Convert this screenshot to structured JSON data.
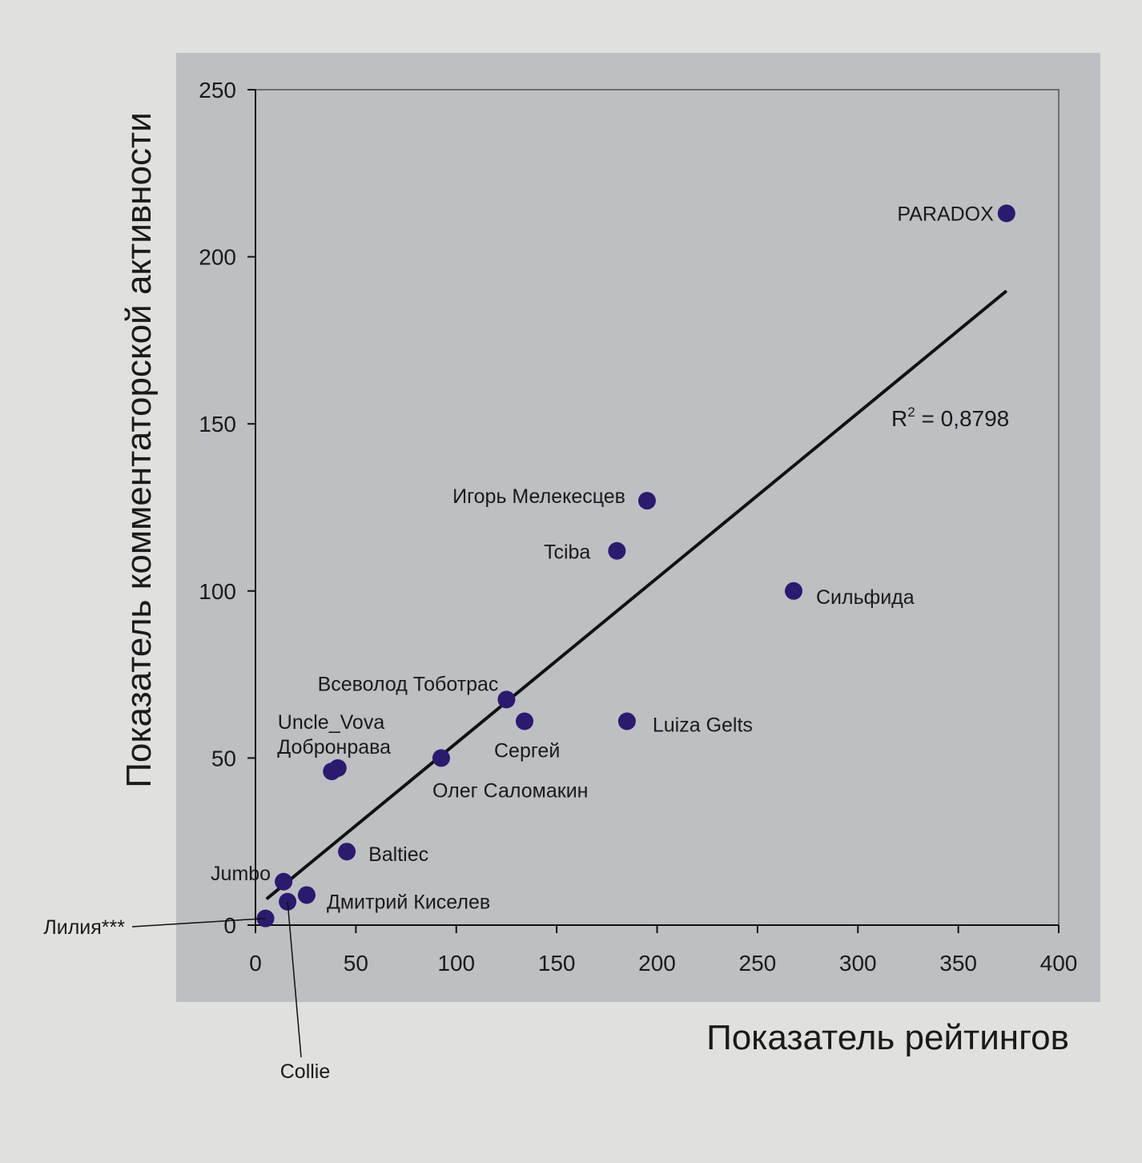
{
  "chart_data": {
    "type": "scatter",
    "title": "",
    "xlabel": "Показатель рейтингов",
    "ylabel": "Показатель комментаторской активности",
    "xlim": [
      0,
      400
    ],
    "ylim": [
      0,
      250
    ],
    "xticks": [
      0,
      50,
      100,
      150,
      200,
      250,
      300,
      350,
      400
    ],
    "yticks": [
      0,
      50,
      100,
      150,
      200,
      250
    ],
    "grid": false,
    "point_color": "#2b1b6e",
    "points": [
      {
        "label": "PARADOX",
        "x": 374,
        "y": 213
      },
      {
        "label": "Игорь Мелекесцев",
        "x": 195,
        "y": 127
      },
      {
        "label": "Tciba",
        "x": 180,
        "y": 112
      },
      {
        "label": "Сильфида",
        "x": 268,
        "y": 100
      },
      {
        "label": "Всеволод Тоботрас",
        "x": 125,
        "y": 67.5
      },
      {
        "label": "Сергей",
        "x": 134,
        "y": 61
      },
      {
        "label": "Luiza Gelts",
        "x": 185,
        "y": 61
      },
      {
        "label": "Олег Саломакин",
        "x": 92.5,
        "y": 50
      },
      {
        "label": "Uncle_Vova",
        "x": 41,
        "y": 47
      },
      {
        "label": "Добронрава",
        "x": 38,
        "y": 46
      },
      {
        "label": "Baltiec",
        "x": 45.5,
        "y": 22
      },
      {
        "label": "Jumbo",
        "x": 14,
        "y": 13
      },
      {
        "label": "Дмитрий Киселев",
        "x": 25.5,
        "y": 9
      },
      {
        "label": "Collie",
        "x": 16,
        "y": 7
      },
      {
        "label": "Лилия***",
        "x": 5,
        "y": 2
      }
    ],
    "trendline": {
      "type": "linear",
      "x": [
        5.5,
        374
      ],
      "y": [
        7.8,
        189.8
      ],
      "r2_label": "R",
      "r2_sup": "2",
      "r2_value": " = 0,8798"
    }
  }
}
